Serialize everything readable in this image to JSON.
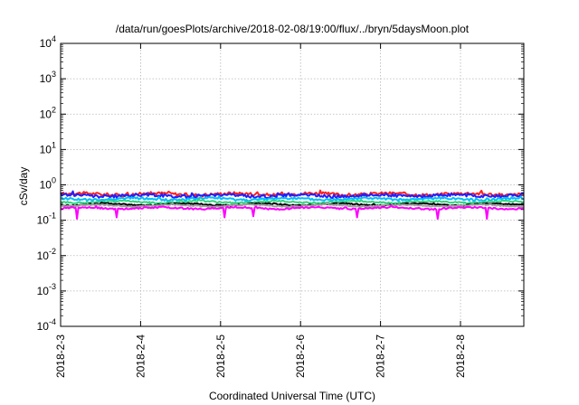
{
  "chart_data": {
    "type": "line",
    "title": "/data/run/goesPlots/archive/2018-02-08/19:00/flux/../bryn/5daysMoon.plot",
    "xlabel": "Coordinated Universal Time (UTC)",
    "ylabel": "cSv/day",
    "yscale": "log",
    "ylim": [
      0.0001,
      10000
    ],
    "yticks": [
      {
        "value": 0.0001,
        "base": "10",
        "exp": "-4"
      },
      {
        "value": 0.001,
        "base": "10",
        "exp": "-3"
      },
      {
        "value": 0.01,
        "base": "10",
        "exp": "-2"
      },
      {
        "value": 0.1,
        "base": "10",
        "exp": "-1"
      },
      {
        "value": 1,
        "base": "10",
        "exp": "0"
      },
      {
        "value": 10,
        "base": "10",
        "exp": "1"
      },
      {
        "value": 100,
        "base": "10",
        "exp": "2"
      },
      {
        "value": 1000,
        "base": "10",
        "exp": "3"
      },
      {
        "value": 10000,
        "base": "10",
        "exp": "4"
      }
    ],
    "xlim": [
      "2018-02-03T00:00",
      "2018-02-08T19:00"
    ],
    "xticks": [
      "2018-2-3",
      "2018-2-4",
      "2018-2-5",
      "2018-2-6",
      "2018-2-7",
      "2018-2-8"
    ],
    "grid": true,
    "series": [
      {
        "color": "#ff2020",
        "level": 0.55,
        "spread": 0.1
      },
      {
        "color": "#2020ff",
        "level": 0.5,
        "spread": 0.1
      },
      {
        "color": "#00bfff",
        "level": 0.4,
        "spread": 0.07
      },
      {
        "color": "#2ed67f",
        "level": 0.33,
        "spread": 0.05
      },
      {
        "color": "#000000",
        "level": 0.28,
        "spread": 0.04
      },
      {
        "color": "#a0a0a0",
        "level": 0.26,
        "spread": 0.04
      },
      {
        "color": "#ff00ff",
        "level": 0.22,
        "spread": 0.05,
        "dips": [
          {
            "x": "2018-02-03T05:00",
            "value": 0.11
          },
          {
            "x": "2018-02-03T17:00",
            "value": 0.12
          },
          {
            "x": "2018-02-05T01:00",
            "value": 0.12
          },
          {
            "x": "2018-02-05T10:00",
            "value": 0.13
          },
          {
            "x": "2018-02-06T17:00",
            "value": 0.12
          },
          {
            "x": "2018-02-07T17:00",
            "value": 0.11
          },
          {
            "x": "2018-02-08T08:00",
            "value": 0.11
          }
        ]
      }
    ]
  }
}
